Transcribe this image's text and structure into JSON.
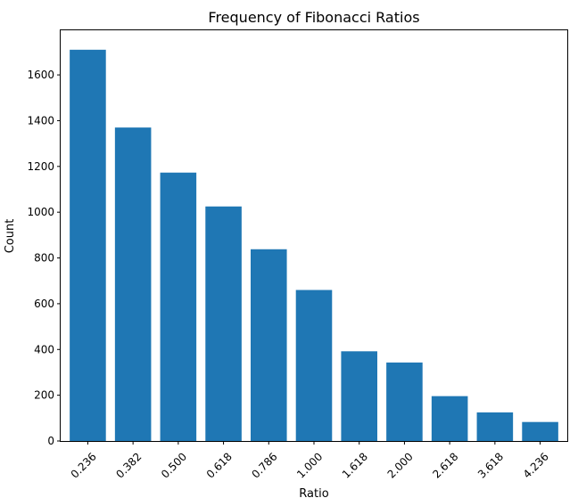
{
  "chart_data": {
    "type": "bar",
    "title": "Frequency of Fibonacci Ratios",
    "xlabel": "Ratio",
    "ylabel": "Count",
    "categories": [
      "0.236",
      "0.382",
      "0.500",
      "0.618",
      "0.786",
      "1.000",
      "1.618",
      "2.000",
      "2.618",
      "3.618",
      "4.236"
    ],
    "values": [
      1710,
      1370,
      1173,
      1025,
      838,
      660,
      392,
      343,
      196,
      125,
      83
    ],
    "ylim": [
      0,
      1795
    ],
    "yticks": [
      0,
      200,
      400,
      600,
      800,
      1000,
      1200,
      1400,
      1600
    ],
    "grid": false,
    "bar_color": "#1f77b4"
  }
}
